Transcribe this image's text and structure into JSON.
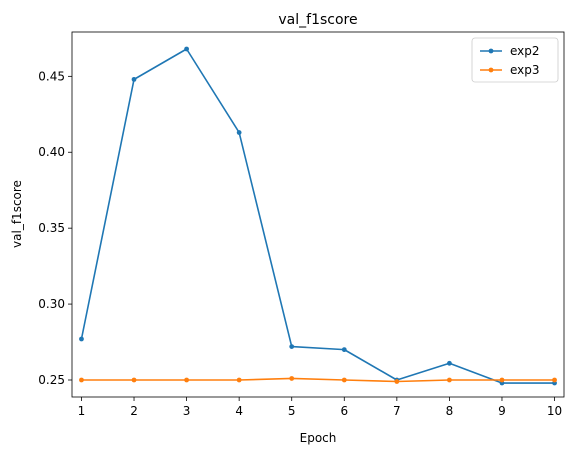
{
  "chart_data": {
    "type": "line",
    "title": "val_f1score",
    "xlabel": "Epoch",
    "ylabel": "val_f1score",
    "x": [
      1,
      2,
      3,
      4,
      5,
      6,
      7,
      8,
      9,
      10
    ],
    "xticks": [
      "1",
      "2",
      "3",
      "4",
      "5",
      "6",
      "7",
      "8",
      "9",
      "10"
    ],
    "yticks": [
      0.25,
      0.3,
      0.35,
      0.4,
      0.45
    ],
    "ytick_labels": [
      "0.25",
      "0.30",
      "0.35",
      "0.40",
      "0.45"
    ],
    "xlim": [
      0.82,
      10.18
    ],
    "ylim": [
      0.2388,
      0.4792
    ],
    "grid": false,
    "legend_position": "top-right",
    "series": [
      {
        "name": "exp2",
        "color": "#1f77b4",
        "values": [
          0.277,
          0.448,
          0.468,
          0.413,
          0.272,
          0.27,
          0.25,
          0.261,
          0.248,
          0.248
        ]
      },
      {
        "name": "exp3",
        "color": "#ff7f0e",
        "values": [
          0.25,
          0.25,
          0.25,
          0.25,
          0.251,
          0.25,
          0.249,
          0.25,
          0.25,
          0.25
        ]
      }
    ]
  }
}
